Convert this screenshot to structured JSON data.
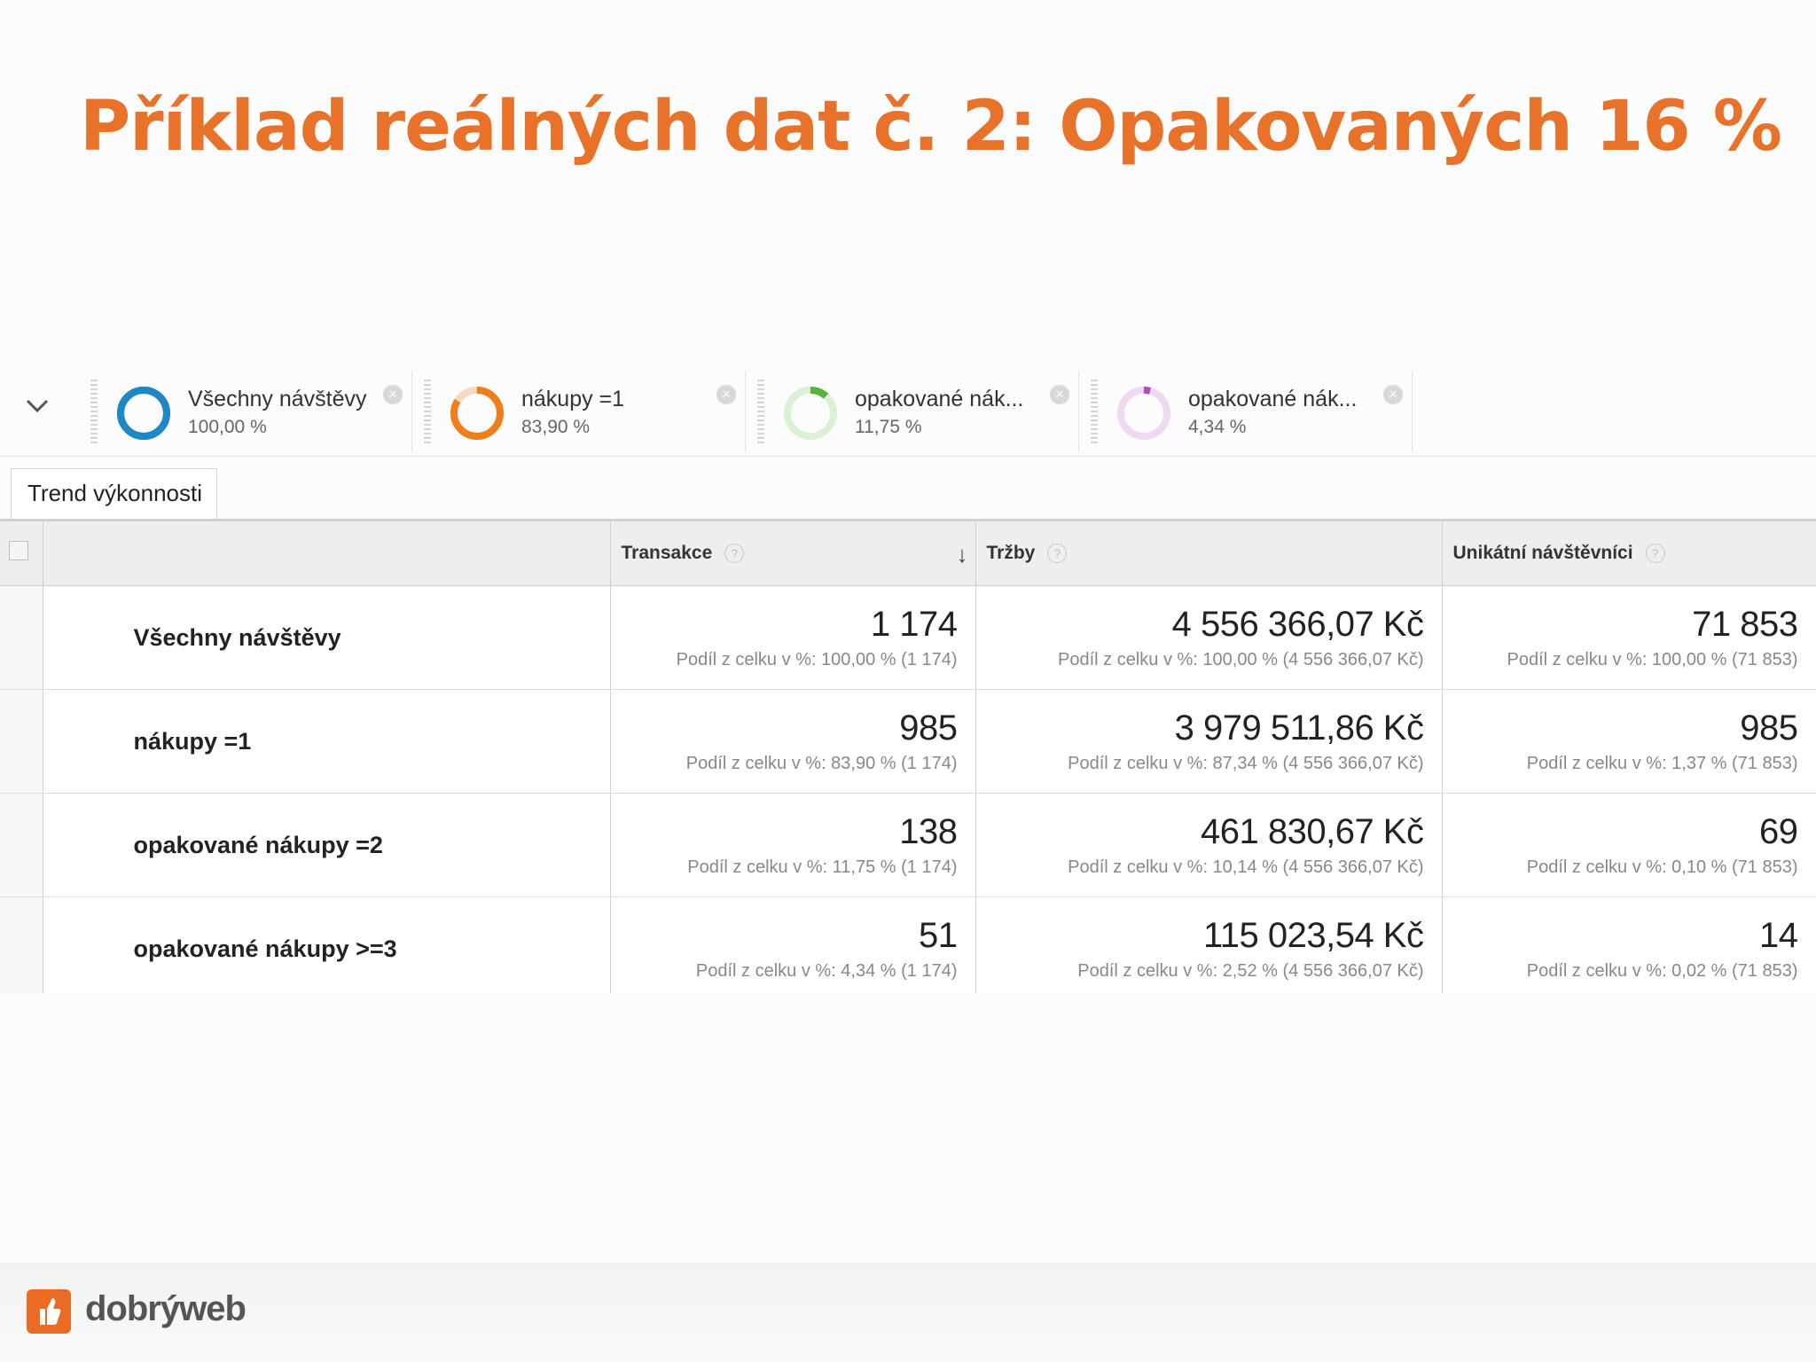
{
  "slide": {
    "title": "Příklad reálných dat č. 2: Opakovaných 16 %"
  },
  "segments": [
    {
      "name": "Všechny návštěvy",
      "percent": "100,00 %",
      "share": 1.0,
      "color": "#1e88c7",
      "track": "#1e88c7"
    },
    {
      "name": "nákupy =1",
      "percent": "83,90 %",
      "share": 0.839,
      "color": "#ef7f1a",
      "track": "#f6d9bd"
    },
    {
      "name": "opakované nák...",
      "percent": "11,75 %",
      "share": 0.1175,
      "color": "#57b33e",
      "track": "#dcf0d6"
    },
    {
      "name": "opakované nák...",
      "percent": "4,34 %",
      "share": 0.0434,
      "color": "#b74bbd",
      "track": "#efd9f1"
    }
  ],
  "tab": {
    "label": "Trend výkonnosti"
  },
  "table": {
    "columns": [
      {
        "label": "Transakce"
      },
      {
        "label": "Tržby"
      },
      {
        "label": "Unikátní návštěvníci"
      }
    ],
    "rows": [
      {
        "segment": "Všechny návštěvy",
        "transakce": "1 174",
        "transakce_share": "Podíl z celku v %: 100,00 % (1 174)",
        "trzby": "4 556 366,07 Kč",
        "trzby_share": "Podíl z celku v %: 100,00 % (4 556 366,07 Kč)",
        "navstevnici": "71 853",
        "navstevnici_share": "Podíl z celku v %: 100,00 % (71 853)"
      },
      {
        "segment": "nákupy =1",
        "transakce": "985",
        "transakce_share": "Podíl z celku v %: 83,90 % (1 174)",
        "trzby": "3 979 511,86 Kč",
        "trzby_share": "Podíl z celku v %: 87,34 % (4 556 366,07 Kč)",
        "navstevnici": "985",
        "navstevnici_share": "Podíl z celku v %: 1,37 % (71 853)"
      },
      {
        "segment": "opakované nákupy =2",
        "transakce": "138",
        "transakce_share": "Podíl z celku v %: 11,75 % (1 174)",
        "trzby": "461 830,67 Kč",
        "trzby_share": "Podíl z celku v %: 10,14 % (4 556 366,07 Kč)",
        "navstevnici": "69",
        "navstevnici_share": "Podíl z celku v %: 0,10 % (71 853)"
      },
      {
        "segment": "opakované nákupy >=3",
        "transakce": "51",
        "transakce_share": "Podíl z celku v %: 4,34 % (1 174)",
        "trzby": "115 023,54 Kč",
        "trzby_share": "Podíl z celku v %: 2,52 % (4 556 366,07 Kč)",
        "navstevnici": "14",
        "navstevnici_share": "Podíl z celku v %: 0,02 % (71 853)"
      }
    ]
  },
  "footer": {
    "brand": "dobrýweb",
    "brand_color": "#ec6b24"
  }
}
